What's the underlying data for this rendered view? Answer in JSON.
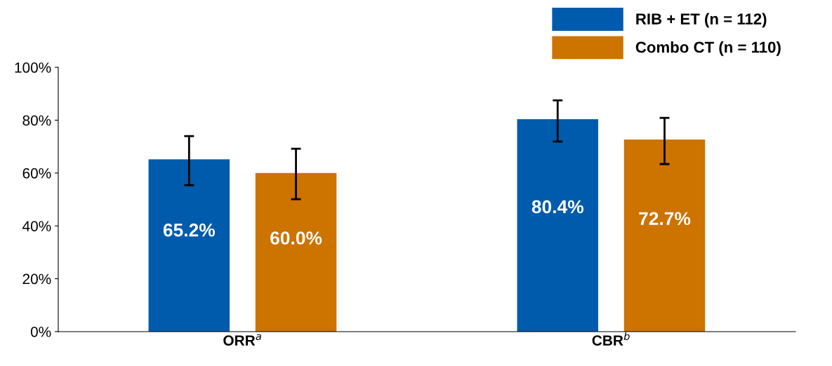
{
  "chart_data": {
    "type": "bar",
    "categories": [
      "ORR$^{a}$",
      "CBR$^{b}$"
    ],
    "series": [
      {
        "name": "RIB + ET (n = 112)",
        "color": "#005bac",
        "values": [
          65.2,
          80.4
        ],
        "errors": [
          [
            55.4,
            74.0
          ],
          [
            71.9,
            87.5
          ]
        ],
        "value_labels": [
          "65.2%",
          "80.4%"
        ]
      },
      {
        "name": "Combo CT (n = 110)",
        "color": "#cc7300",
        "values": [
          60.0,
          72.7
        ],
        "errors": [
          [
            50.1,
            69.2
          ],
          [
            63.4,
            80.9
          ]
        ],
        "value_labels": [
          "60.0%",
          "72.7%"
        ]
      }
    ],
    "ylim": [
      0,
      100
    ],
    "yticks": [
      {
        "value": 0,
        "label": "0%"
      },
      {
        "value": 20,
        "label": "20%"
      },
      {
        "value": 40,
        "label": "40%"
      },
      {
        "value": 60,
        "label": "60%"
      },
      {
        "value": 80,
        "label": "80%"
      },
      {
        "value": 100,
        "label": "100%"
      }
    ],
    "grid": false,
    "legend": "top right"
  }
}
